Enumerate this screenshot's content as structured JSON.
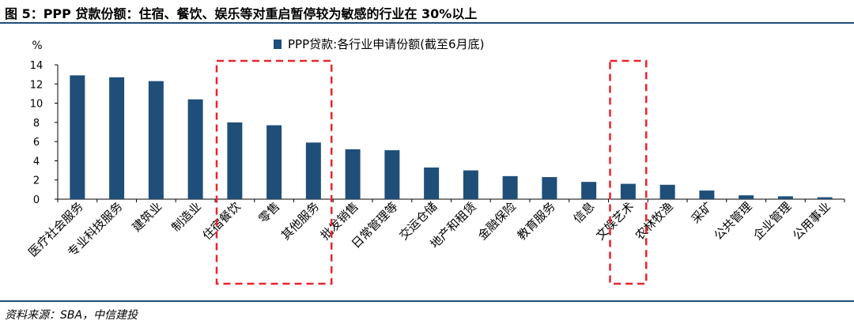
{
  "figure": {
    "title": "图 5：PPP 贷款份额：住宿、餐饮、娱乐等对重启暂停较为敏感的行业在 30%以上",
    "source": "资料来源：SBA，中信建投"
  },
  "chart_data": {
    "type": "bar",
    "unit_label": "%",
    "categories": [
      "医疗社会服务",
      "专业科技服务",
      "建筑业",
      "制造业",
      "住宿餐饮",
      "零售",
      "其他服务",
      "批发销售",
      "日常管理等",
      "交运仓储",
      "地产和租赁",
      "金融保险",
      "教育服务",
      "信息",
      "文娱艺术",
      "农林牧渔",
      "采矿",
      "公共管理",
      "企业管理",
      "公用事业"
    ],
    "series": [
      {
        "name": "PPP贷款:各行业申请份额(截至6月底)",
        "values": [
          12.9,
          12.7,
          12.3,
          10.4,
          8.0,
          7.7,
          5.9,
          5.2,
          5.1,
          3.3,
          3.0,
          2.4,
          2.3,
          1.8,
          1.6,
          1.5,
          0.9,
          0.4,
          0.3,
          0.2
        ]
      }
    ],
    "ylim": [
      0,
      14
    ],
    "yticks": [
      0,
      2,
      4,
      6,
      8,
      10,
      12,
      14
    ],
    "legend_position": "top",
    "grid": false,
    "highlight_groups": [
      [
        4,
        6
      ],
      [
        14,
        14
      ]
    ],
    "colors": {
      "bar": "#1f4e79",
      "highlight": "#e8242d",
      "rule": "#1f4e79"
    }
  }
}
